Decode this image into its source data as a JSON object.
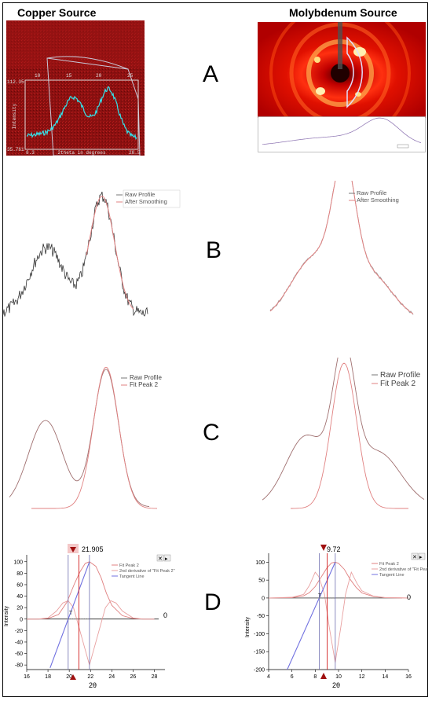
{
  "titles": {
    "copper": "Copper Source",
    "molybdenum": "Molybdenum Source"
  },
  "row_labels": [
    "A",
    "B",
    "C",
    "D"
  ],
  "panel_a": {
    "copper": {
      "top_ticks": [
        "10",
        "15",
        "20",
        "25"
      ],
      "ymax": "112.35",
      "ymin": "35.761",
      "ylabel": "Intensity",
      "xlabel": "2theta in degrees",
      "xmin": "8.3",
      "xmax": "28.5"
    }
  },
  "legends": {
    "b": {
      "raw": "Raw Profile",
      "smooth": "After Smoothing"
    },
    "c": {
      "raw": "Raw Profile",
      "fit": "Fit Peak 2"
    },
    "d": {
      "fit": "Fit Peak 2",
      "deriv": "2nd derivative of \"Fit Peak 2\"",
      "tangent": "Tangent Line"
    }
  },
  "panel_d": {
    "ylabel": "Intensity",
    "xlabel": "2θ",
    "zero_label": "0",
    "marker_t": "T",
    "close_symbol": "✕",
    "arrow_symbol": "▸",
    "copper": {
      "peak_value": "21.905",
      "y_ticks": [
        "100",
        "80",
        "60",
        "40",
        "20",
        "0",
        "-20",
        "-40",
        "-60",
        "-80"
      ],
      "x_ticks": [
        "16",
        "18",
        "20",
        "22",
        "24",
        "26",
        "28"
      ]
    },
    "molybdenum": {
      "peak_value": "9.72",
      "y_ticks": [
        "100",
        "50",
        "0",
        "-50",
        "-100",
        "-150",
        "-200"
      ],
      "x_ticks": [
        "4",
        "6",
        "8",
        "10",
        "12",
        "14",
        "16"
      ]
    }
  },
  "colors": {
    "raw": "#777777",
    "fit": "#e08080",
    "tangent": "#7070e0",
    "deriv": "#e8a0a0",
    "red": "#cc0000",
    "cyan": "#34e0e8"
  },
  "chart_data": [
    {
      "type": "line",
      "panel": "D-copper",
      "xlabel": "2θ",
      "ylabel": "Intensity",
      "xlim": [
        16,
        29
      ],
      "ylim": [
        -88,
        112
      ],
      "series": [
        {
          "name": "Fit Peak 2",
          "x": [
            16,
            17,
            18,
            19,
            19.8,
            20.5,
            21,
            21.5,
            21.9,
            22.5,
            23,
            23.5,
            24,
            25,
            26,
            27,
            28
          ],
          "y": [
            0,
            0,
            1,
            8,
            30,
            62,
            82,
            97,
            100,
            92,
            72,
            45,
            24,
            6,
            1,
            0,
            0
          ]
        },
        {
          "name": "2nd derivative of \"Fit Peak 2\"",
          "x": [
            16,
            17,
            18,
            18.8,
            19.4,
            19.9,
            20.4,
            21,
            21.9,
            22.8,
            23.4,
            23.9,
            24.4,
            25,
            26,
            27,
            28
          ],
          "y": [
            0,
            0,
            2,
            14,
            28,
            32,
            20,
            -20,
            -80,
            -20,
            20,
            32,
            28,
            14,
            2,
            0,
            0
          ]
        },
        {
          "name": "Tangent Line",
          "x": [
            18.2,
            21.9
          ],
          "y": [
            -85,
            100
          ]
        }
      ]
    },
    {
      "type": "line",
      "panel": "D-molybdenum",
      "xlabel": "2θ",
      "ylabel": "Intensity",
      "xlim": [
        4,
        16
      ],
      "ylim": [
        -200,
        125
      ],
      "series": [
        {
          "name": "Fit Peak 2",
          "x": [
            4,
            6,
            7,
            7.5,
            8,
            8.5,
            9,
            9.4,
            9.72,
            10,
            10.5,
            11,
            11.5,
            12,
            13,
            14,
            16
          ],
          "y": [
            0,
            1,
            6,
            15,
            32,
            58,
            84,
            98,
            100,
            97,
            80,
            52,
            30,
            14,
            4,
            1,
            0
          ]
        },
        {
          "name": "2nd derivative of \"Fit Peak 2\"",
          "x": [
            4,
            6,
            7,
            7.5,
            8,
            8.3,
            8.8,
            9.2,
            9.72,
            10.2,
            10.6,
            11.1,
            11.6,
            12,
            13,
            14,
            16
          ],
          "y": [
            0,
            2,
            10,
            35,
            72,
            60,
            10,
            -80,
            -180,
            -80,
            10,
            72,
            40,
            20,
            5,
            1,
            0
          ]
        },
        {
          "name": "Tangent Line",
          "x": [
            5.6,
            9.72
          ],
          "y": [
            -200,
            100
          ]
        }
      ]
    }
  ]
}
